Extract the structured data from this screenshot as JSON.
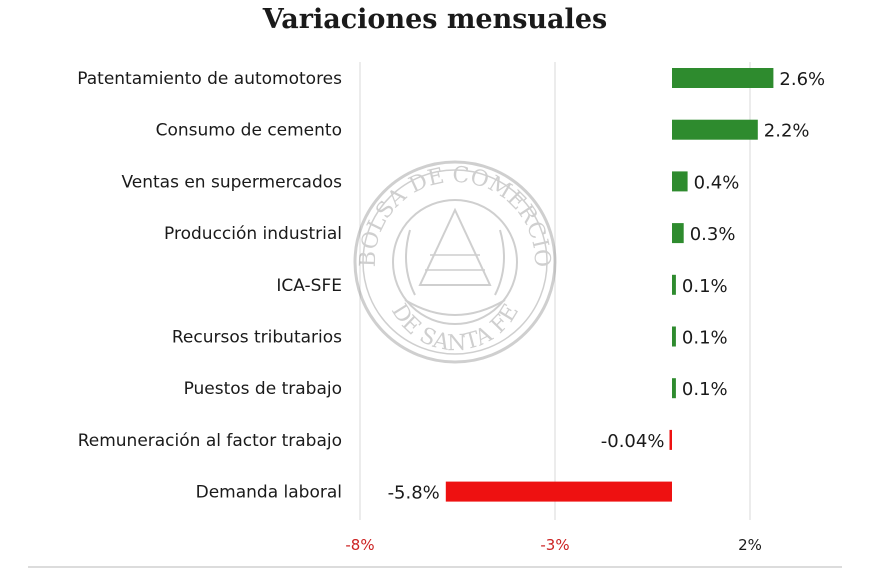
{
  "chart_data": {
    "type": "bar",
    "orientation": "horizontal",
    "title": "Variaciones mensuales",
    "categories": [
      "Patentamiento de automotores",
      "Consumo de cemento",
      "Ventas en supermercados",
      "Producción industrial",
      "ICA-SFE",
      "Recursos tributarios",
      "Puestos de trabajo",
      "Remuneración al factor trabajo",
      "Demanda laboral"
    ],
    "values": [
      2.6,
      2.2,
      0.4,
      0.3,
      0.1,
      0.1,
      0.1,
      -0.04,
      -5.8
    ],
    "data_labels": [
      "2.6%",
      "2.2%",
      "0.4%",
      "0.3%",
      "0.1%",
      "0.1%",
      "0.1%",
      "-0.04%",
      "-5.8%"
    ],
    "xlim": [
      -8,
      2
    ],
    "xticks": [
      -8,
      -3,
      2
    ],
    "xtick_labels": [
      "-8%",
      "-3%",
      "2%"
    ],
    "grid": "vertical",
    "legend": "none",
    "colors": {
      "positive": "#2e8b2e",
      "negative": "#ee1111",
      "negative_tick": "#cc2222",
      "positive_tick": "#1a1a1a",
      "grid": "#e6e6e6"
    }
  },
  "watermark": {
    "text_top": "BOLSA DE COMERCIO",
    "text_bottom": "DE SANTA FE"
  }
}
